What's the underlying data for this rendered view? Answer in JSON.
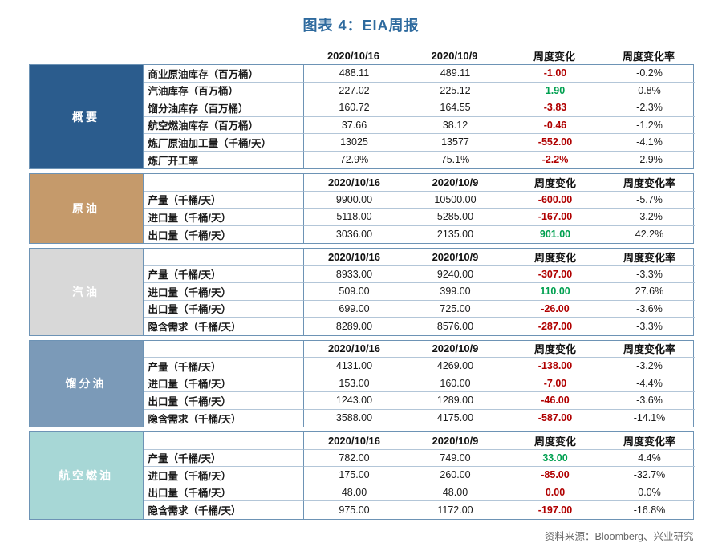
{
  "title": "图表 4：EIA周报",
  "source": "资料来源：Bloomberg、兴业研究",
  "colors": {
    "title": "#2e6a9e",
    "border_outer": "#6d93b5",
    "border_inner": "#b3c6d8",
    "negative": "#b00000",
    "positive": "#00a050"
  },
  "chart_data": {
    "type": "table",
    "title": "图表 4：EIA周报",
    "columns": [
      "2020/10/16",
      "2020/10/9",
      "周度变化",
      "周度变化率"
    ],
    "sections": [
      {
        "id": "summary",
        "name": "概要",
        "bg": "#2b5c8d",
        "header_row": false,
        "rows": [
          {
            "label": "商业原油库存（百万桶）",
            "cur": "488.11",
            "prev": "489.11",
            "chg": "-1.00",
            "chg_color": "neg",
            "rate": "-0.2%"
          },
          {
            "label": "汽油库存（百万桶）",
            "cur": "227.02",
            "prev": "225.12",
            "chg": "1.90",
            "chg_color": "pos",
            "rate": "0.8%"
          },
          {
            "label": "馏分油库存（百万桶）",
            "cur": "160.72",
            "prev": "164.55",
            "chg": "-3.83",
            "chg_color": "neg",
            "rate": "-2.3%"
          },
          {
            "label": "航空燃油库存（百万桶）",
            "cur": "37.66",
            "prev": "38.12",
            "chg": "-0.46",
            "chg_color": "neg",
            "rate": "-1.2%"
          },
          {
            "label": "炼厂原油加工量（千桶/天）",
            "cur": "13025",
            "prev": "13577",
            "chg": "-552.00",
            "chg_color": "neg",
            "rate": "-4.1%"
          },
          {
            "label": "炼厂开工率",
            "cur": "72.9%",
            "prev": "75.1%",
            "chg": "-2.2%",
            "chg_color": "neg",
            "rate": "-2.9%"
          }
        ]
      },
      {
        "id": "crude-oil",
        "name": "原油",
        "bg": "#c59a6b",
        "header_row": true,
        "rows": [
          {
            "label": "产量（千桶/天）",
            "cur": "9900.00",
            "prev": "10500.00",
            "chg": "-600.00",
            "chg_color": "neg",
            "rate": "-5.7%"
          },
          {
            "label": "进口量（千桶/天）",
            "cur": "5118.00",
            "prev": "5285.00",
            "chg": "-167.00",
            "chg_color": "neg",
            "rate": "-3.2%"
          },
          {
            "label": "出口量（千桶/天）",
            "cur": "3036.00",
            "prev": "2135.00",
            "chg": "901.00",
            "chg_color": "pos",
            "rate": "42.2%"
          }
        ]
      },
      {
        "id": "gasoline",
        "name": "汽油",
        "bg": "#d8d8d8",
        "header_row": true,
        "rows": [
          {
            "label": "产量（千桶/天）",
            "cur": "8933.00",
            "prev": "9240.00",
            "chg": "-307.00",
            "chg_color": "neg",
            "rate": "-3.3%"
          },
          {
            "label": "进口量（千桶/天）",
            "cur": "509.00",
            "prev": "399.00",
            "chg": "110.00",
            "chg_color": "pos",
            "rate": "27.6%"
          },
          {
            "label": "出口量（千桶/天）",
            "cur": "699.00",
            "prev": "725.00",
            "chg": "-26.00",
            "chg_color": "neg",
            "rate": "-3.6%"
          },
          {
            "label": "隐含需求（千桶/天）",
            "cur": "8289.00",
            "prev": "8576.00",
            "chg": "-287.00",
            "chg_color": "neg",
            "rate": "-3.3%"
          }
        ]
      },
      {
        "id": "distillate",
        "name": "馏分油",
        "bg": "#7b9ab8",
        "header_row": true,
        "rows": [
          {
            "label": "产量（千桶/天）",
            "cur": "4131.00",
            "prev": "4269.00",
            "chg": "-138.00",
            "chg_color": "neg",
            "rate": "-3.2%"
          },
          {
            "label": "进口量（千桶/天）",
            "cur": "153.00",
            "prev": "160.00",
            "chg": "-7.00",
            "chg_color": "neg",
            "rate": "-4.4%"
          },
          {
            "label": "出口量（千桶/天）",
            "cur": "1243.00",
            "prev": "1289.00",
            "chg": "-46.00",
            "chg_color": "neg",
            "rate": "-3.6%"
          },
          {
            "label": "隐含需求（千桶/天）",
            "cur": "3588.00",
            "prev": "4175.00",
            "chg": "-587.00",
            "chg_color": "neg",
            "rate": "-14.1%"
          }
        ]
      },
      {
        "id": "jet-fuel",
        "name": "航空燃油",
        "bg": "#a7d7d6",
        "header_row": true,
        "rows": [
          {
            "label": "产量（千桶/天）",
            "cur": "782.00",
            "prev": "749.00",
            "chg": "33.00",
            "chg_color": "pos",
            "rate": "4.4%"
          },
          {
            "label": "进口量（千桶/天）",
            "cur": "175.00",
            "prev": "260.00",
            "chg": "-85.00",
            "chg_color": "neg",
            "rate": "-32.7%"
          },
          {
            "label": "出口量（千桶/天）",
            "cur": "48.00",
            "prev": "48.00",
            "chg": "0.00",
            "chg_color": "neg",
            "rate": "0.0%"
          },
          {
            "label": "隐含需求（千桶/天）",
            "cur": "975.00",
            "prev": "1172.00",
            "chg": "-197.00",
            "chg_color": "neg",
            "rate": "-16.8%"
          }
        ]
      }
    ]
  }
}
